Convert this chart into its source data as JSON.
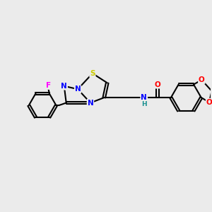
{
  "background_color": "#ebebeb",
  "atom_colors": {
    "C": "#000000",
    "N": "#0000ff",
    "O": "#ff0000",
    "S": "#cccc00",
    "F": "#ff00ff",
    "H": "#1a9090"
  },
  "figsize": [
    3.0,
    3.0
  ],
  "dpi": 100
}
